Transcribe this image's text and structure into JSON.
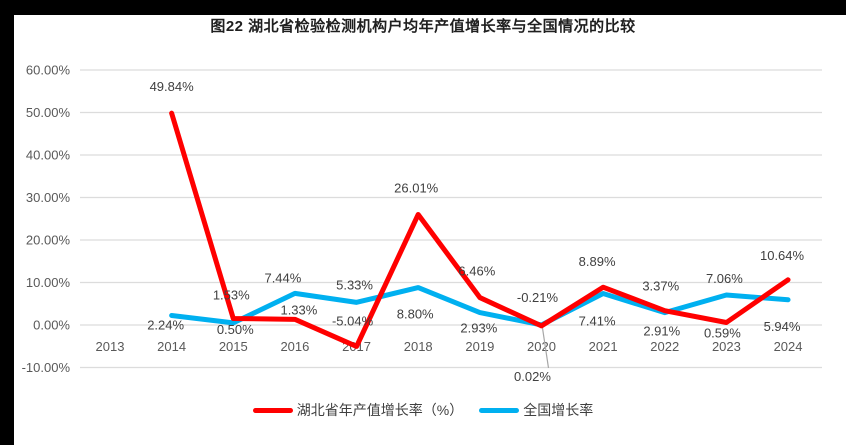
{
  "page": {
    "title": "图22 湖北省检验检测机构户均年产值增长率与全国情况的比较"
  },
  "chart_data": {
    "type": "line",
    "title": "图22 湖北省检验检测机构户均年产值增长率与全国情况的比较",
    "categories": [
      "2013",
      "2014",
      "2015",
      "2016",
      "2017",
      "2018",
      "2019",
      "2020",
      "2021",
      "2022",
      "2023",
      "2024"
    ],
    "series_start_index": 1,
    "series": [
      {
        "name": "湖北省年产值增长率（%）",
        "color": "#FF0000",
        "values": [
          49.84,
          1.53,
          1.33,
          -5.04,
          26.01,
          6.46,
          -0.21,
          8.89,
          3.37,
          0.59,
          10.64
        ],
        "labels": [
          "49.84%",
          "1.53%",
          "1.33%",
          "-5.04%",
          "26.01%",
          "6.46%",
          "-0.21%",
          "8.89%",
          "3.37%",
          "0.59%",
          "10.64%"
        ],
        "label_offsets": [
          [
            0,
            -22
          ],
          [
            -2,
            -19
          ],
          [
            4,
            -5
          ],
          [
            -4,
            -21
          ],
          [
            -2,
            -22
          ],
          [
            -3,
            -22
          ],
          [
            -4,
            -24
          ],
          [
            -6,
            -21
          ],
          [
            -4,
            -20
          ],
          [
            -4,
            15
          ],
          [
            -6,
            -20
          ]
        ]
      },
      {
        "name": "全国增长率",
        "color": "#00B0F0",
        "values": [
          2.24,
          0.5,
          7.44,
          5.33,
          8.8,
          2.93,
          0.02,
          7.41,
          2.91,
          7.06,
          5.94
        ],
        "labels": [
          "2.24%",
          "0.50%",
          "7.44%",
          "5.33%",
          "8.80%",
          "2.93%",
          "0.02%",
          "7.41%",
          "2.91%",
          "7.06%",
          "5.94%"
        ],
        "label_offsets": [
          [
            -6,
            14
          ],
          [
            2,
            11
          ],
          [
            -12,
            -11
          ],
          [
            -2,
            -13
          ],
          [
            -3,
            31
          ],
          [
            -1,
            20
          ],
          [
            -9,
            56
          ],
          [
            -6,
            32
          ],
          [
            -3,
            23
          ],
          [
            -2,
            -12
          ],
          [
            -6,
            31
          ]
        ],
        "callout_index": 6
      }
    ],
    "ylim": [
      -10,
      60
    ],
    "yticks": [
      {
        "value": 60,
        "label": "60.00%"
      },
      {
        "value": 50,
        "label": "50.00%"
      },
      {
        "value": 40,
        "label": "40.00%"
      },
      {
        "value": 30,
        "label": "30.00%"
      },
      {
        "value": 20,
        "label": "20.00%"
      },
      {
        "value": 10,
        "label": "10.00%"
      },
      {
        "value": 0,
        "label": "0.00%"
      },
      {
        "value": -10,
        "label": "-10.00%"
      }
    ],
    "grid": true,
    "legend_position": "bottom"
  },
  "colors": {
    "grid_line": "#DCDCDC",
    "axis_text": "#595959",
    "data_label_text": "#404040",
    "leader_line": "#A6A6A6",
    "frame": "#000000"
  }
}
